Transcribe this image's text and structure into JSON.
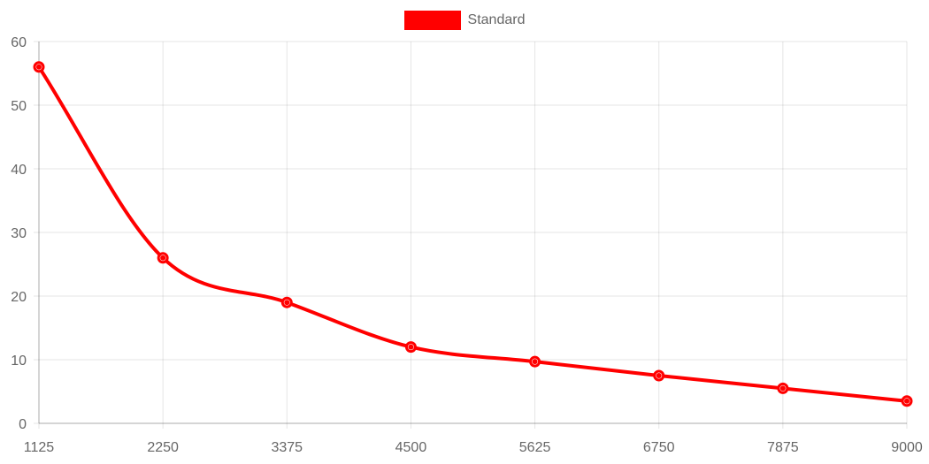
{
  "chart_data": {
    "type": "line",
    "x": [
      1125,
      2250,
      3375,
      4500,
      5625,
      6750,
      7875,
      9000
    ],
    "x_tick_labels": [
      "1125",
      "2250",
      "3375",
      "4500",
      "5625",
      "6750",
      "7875",
      "9000"
    ],
    "series": [
      {
        "name": "Standard",
        "values": [
          56,
          26,
          19,
          12,
          9.7,
          7.5,
          5.5,
          3.5
        ],
        "color": "#ff0000"
      }
    ],
    "ylim": [
      0,
      60
    ],
    "y_ticks": [
      0,
      10,
      20,
      30,
      40,
      50,
      60
    ],
    "grid": true,
    "legend_position": "top-center"
  }
}
